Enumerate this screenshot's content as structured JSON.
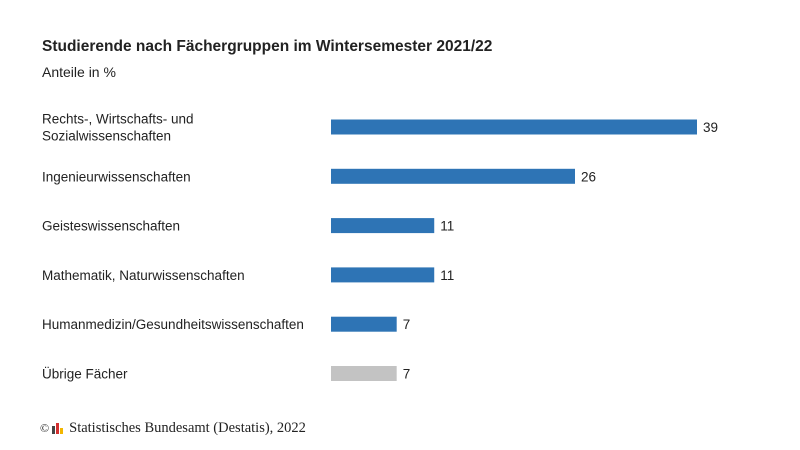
{
  "chart_data": {
    "type": "bar",
    "orientation": "horizontal",
    "title": "Studierende nach Fächergruppen im Wintersemester 2021/22",
    "subtitle": "Anteile in %",
    "categories": [
      [
        "Rechts-, Wirtschafts- und",
        "Sozialwissenschaften"
      ],
      [
        "Ingenieurwissenschaften"
      ],
      [
        "Geisteswissenschaften"
      ],
      [
        "Mathematik, Naturwissenschaften"
      ],
      [
        "Humanmedizin/Gesundheitswissenschaften"
      ],
      [
        "Übrige Fächer"
      ]
    ],
    "values": [
      39,
      26,
      11,
      11,
      7,
      7
    ],
    "colors": [
      "#2e74b5",
      "#2e74b5",
      "#2e74b5",
      "#2e74b5",
      "#2e74b5",
      "#c3c3c3"
    ],
    "data_labels": true,
    "grid": false
  },
  "source": "Statistisches Bundesamt (Destatis), 2022",
  "copyright_symbol": "©"
}
